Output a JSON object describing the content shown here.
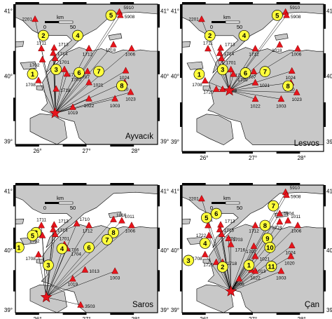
{
  "colors": {
    "sea": "#ffffff",
    "land": "#c8c8c8",
    "coast": "#000000",
    "station": "#e8141c",
    "station_outline": "#7a0000",
    "event_fill": "#ffff3c",
    "ray": "#000000"
  },
  "axes": {
    "x_ticks": [
      "26°",
      "27°",
      "28°"
    ],
    "y_ticks": [
      "41°",
      "40°",
      "39°"
    ],
    "scale_unit": "km",
    "scale_values": [
      "0",
      "50"
    ]
  },
  "station_labels": {
    "s5910": "5910",
    "s5908": "5908",
    "s5904": "5904",
    "s2201": "2201",
    "s1711": "1711",
    "s1713": "1713",
    "s1714": "1714",
    "s1701": "1701",
    "s1715": "1715",
    "s1712": "1712",
    "s1018": "1018",
    "s1011": "1011",
    "s1006": "1006",
    "s1016": "1016",
    "s1703": "1703",
    "s1710": "1710",
    "s1722": "1722",
    "s1702": "1702",
    "s1716": "1716",
    "s1708": "1708",
    "s1705": "1705",
    "s1707": "1707",
    "s1024": "1024",
    "s1704": "1704",
    "s1718": "1718",
    "s1720": "1720",
    "s1021": "1021",
    "s1020": "1020",
    "s1013": "1013",
    "s1022": "1022",
    "s1003": "1003",
    "s1023": "1023",
    "s1019": "1019",
    "s1005": "1005",
    "s3503": "3503"
  },
  "panels": [
    {
      "name": "Ayvacık",
      "source": [
        0.72,
        0.86
      ],
      "stations": [
        [
          "s5910",
          5,
          -6
        ],
        [
          "s5908",
          6,
          -6
        ],
        [
          "s2201",
          10,
          -4
        ],
        [
          "s1711",
          16,
          5
        ],
        [
          "s1713",
          27,
          0
        ],
        [
          "s1714",
          24,
          -1
        ],
        [
          "s1701",
          25,
          3
        ],
        [
          "s1712",
          66,
          21
        ],
        [
          "s1018",
          95,
          40
        ],
        [
          "s1006",
          105,
          52
        ],
        [
          "s1702",
          20,
          54
        ],
        [
          "s1716",
          44,
          57
        ],
        [
          "s1708",
          17,
          99
        ],
        [
          "s1705",
          44,
          80
        ],
        [
          "s1707",
          70,
          68
        ],
        [
          "s1024",
          103,
          43
        ],
        [
          "s1718",
          40,
          119
        ],
        [
          "s1021",
          62,
          120
        ],
        [
          "s1020",
          92,
          112
        ],
        [
          "s1022",
          62,
          105
        ],
        [
          "s1003",
          73,
          158
        ],
        [
          "s1023",
          100,
          150
        ],
        [
          "s1019",
          60,
          170
        ]
      ],
      "events": [
        [
          "5",
          5,
          -26
        ],
        [
          "2",
          18,
          -6
        ],
        [
          "4",
          40,
          10
        ],
        [
          "3",
          40,
          34
        ],
        [
          "1",
          13,
          36
        ],
        [
          "6",
          40,
          72
        ],
        [
          "7",
          70,
          57
        ],
        [
          "8",
          100,
          99
        ]
      ]
    },
    {
      "name": "Lesvos",
      "source": [
        0.64,
        1.56
      ],
      "stations": [
        [
          "s5910",
          5,
          -6
        ],
        [
          "s5908",
          6,
          -6
        ],
        [
          "s2201",
          10,
          -4
        ],
        [
          "s1711",
          16,
          5
        ],
        [
          "s1713",
          27,
          0
        ],
        [
          "s1714",
          24,
          -1
        ],
        [
          "s1701",
          25,
          3
        ],
        [
          "s1712",
          66,
          21
        ],
        [
          "s1018",
          95,
          40
        ],
        [
          "s1006",
          105,
          52
        ],
        [
          "s1716",
          44,
          57
        ],
        [
          "s1708",
          17,
          99
        ],
        [
          "s1705",
          44,
          80
        ],
        [
          "s1707",
          70,
          68
        ],
        [
          "s1024",
          103,
          43
        ],
        [
          "s1718",
          40,
          119
        ],
        [
          "s1720",
          20,
          136
        ],
        [
          "s1021",
          62,
          120
        ],
        [
          "s1020",
          92,
          112
        ],
        [
          "s1003",
          73,
          158
        ],
        [
          "s1023",
          100,
          150
        ],
        [
          "s1022",
          62,
          105
        ]
      ],
      "events": [
        [
          "5",
          5,
          -26
        ],
        [
          "2",
          18,
          -6
        ],
        [
          "4",
          40,
          10
        ],
        [
          "3",
          40,
          34
        ],
        [
          "1",
          13,
          36
        ],
        [
          "6",
          40,
          72
        ],
        [
          "7",
          70,
          57
        ],
        [
          "8",
          100,
          99
        ]
      ]
    },
    {
      "name": "Saros",
      "source": [
        0.36,
        0.42
      ],
      "stations": [
        [
          "s1711",
          16,
          5
        ],
        [
          "s1713",
          27,
          0
        ],
        [
          "s1714",
          24,
          -1
        ],
        [
          "s1701",
          25,
          3
        ],
        [
          "s1710",
          40,
          10
        ],
        [
          "s1712",
          66,
          21
        ],
        [
          "s1016",
          95,
          40
        ],
        [
          "s1011",
          100,
          40
        ],
        [
          "s1006",
          105,
          52
        ],
        [
          "s1702",
          20,
          54
        ],
        [
          "s1716",
          44,
          57
        ],
        [
          "s1708",
          17,
          99
        ],
        [
          "s1704",
          44,
          80
        ],
        [
          "s1013",
          73,
          158
        ],
        [
          "s1019",
          60,
          170
        ],
        [
          "s1003",
          105,
          150
        ],
        [
          "s3503",
          60,
          190
        ]
      ],
      "events": [
        [
          "8",
          5,
          -26
        ],
        [
          "2",
          18,
          -6
        ],
        [
          "5",
          40,
          10
        ],
        [
          "4",
          40,
          34
        ],
        [
          "1",
          13,
          36
        ],
        [
          "6",
          40,
          72
        ],
        [
          "7",
          70,
          57
        ],
        [
          "3",
          100,
          99
        ]
      ]
    },
    {
      "name": "Çan",
      "source": [
        1.1,
        0.62
      ],
      "stations": [
        [
          "s5910",
          5,
          -6
        ],
        [
          "s5908",
          6,
          -6
        ],
        [
          "s5904",
          40,
          10
        ],
        [
          "s2201",
          10,
          -4
        ],
        [
          "s1711",
          16,
          5
        ],
        [
          "s1713",
          27,
          0
        ],
        [
          "s1715",
          24,
          -1
        ],
        [
          "s1701",
          25,
          3
        ],
        [
          "s1712",
          66,
          21
        ],
        [
          "s1018",
          95,
          40
        ],
        [
          "s1006",
          105,
          52
        ],
        [
          "s1011",
          100,
          40
        ],
        [
          "s1722",
          20,
          54
        ],
        [
          "s1716",
          44,
          57
        ],
        [
          "s1708",
          17,
          99
        ],
        [
          "s1703",
          44,
          80
        ],
        [
          "s1707",
          70,
          68
        ],
        [
          "s1024",
          103,
          43
        ],
        [
          "s1718",
          40,
          119
        ],
        [
          "s1720",
          20,
          136
        ],
        [
          "s1021",
          62,
          120
        ],
        [
          "s1020",
          92,
          112
        ],
        [
          "s1013",
          73,
          158
        ],
        [
          "s1022",
          62,
          105
        ],
        [
          "s1003",
          100,
          150
        ],
        [
          "s1005",
          60,
          170
        ]
      ],
      "events": [
        [
          "5",
          5,
          -26
        ],
        [
          "6",
          18,
          -6
        ],
        [
          "7",
          40,
          10
        ],
        [
          "9",
          40,
          34
        ],
        [
          "4",
          13,
          36
        ],
        [
          "10",
          40,
          72
        ],
        [
          "8",
          70,
          57
        ],
        [
          "3",
          100,
          99
        ],
        [
          "2",
          40,
          120
        ],
        [
          "1",
          60,
          120
        ],
        [
          "11",
          80,
          120
        ]
      ]
    }
  ]
}
